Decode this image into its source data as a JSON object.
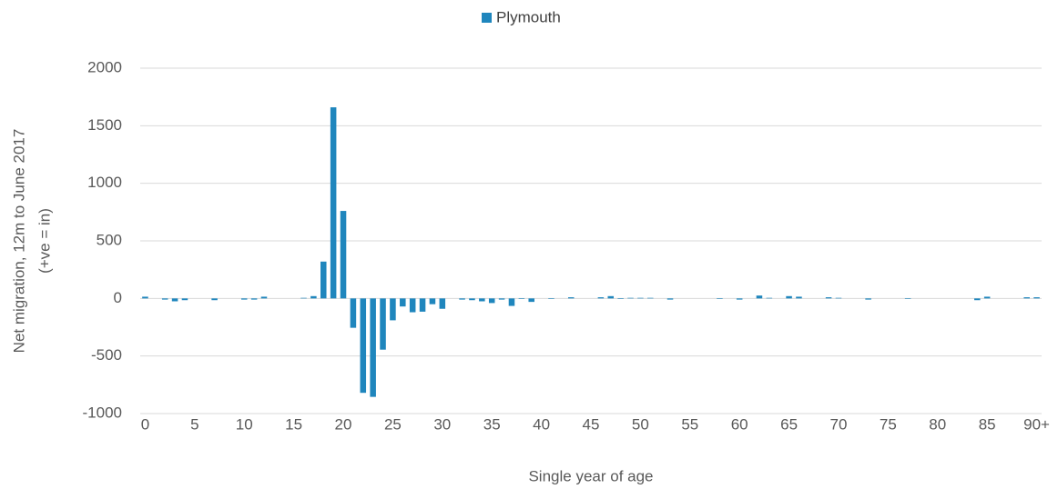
{
  "chart_data": {
    "type": "bar",
    "legend": "Plymouth",
    "xlabel": "Single year of age",
    "ylabel": [
      "Net migration, 12m to June 2017",
      "(+ve = in)"
    ],
    "color": "#1f86bd",
    "categories": [
      "0",
      null,
      null,
      null,
      null,
      "5",
      null,
      null,
      null,
      null,
      "10",
      null,
      null,
      null,
      null,
      "15",
      null,
      null,
      null,
      null,
      "20",
      null,
      null,
      null,
      null,
      "25",
      null,
      null,
      null,
      null,
      "30",
      null,
      null,
      null,
      null,
      "35",
      null,
      null,
      null,
      null,
      "40",
      null,
      null,
      null,
      null,
      "45",
      null,
      null,
      null,
      null,
      "50",
      null,
      null,
      null,
      null,
      "55",
      null,
      null,
      null,
      null,
      "60",
      null,
      null,
      null,
      null,
      "65",
      null,
      null,
      null,
      null,
      "70",
      null,
      null,
      null,
      null,
      "75",
      null,
      null,
      null,
      null,
      "80",
      null,
      null,
      null,
      null,
      "85",
      null,
      null,
      null,
      null,
      "90+"
    ],
    "values": [
      15,
      0,
      -10,
      -25,
      -15,
      0,
      0,
      -15,
      0,
      0,
      -10,
      -10,
      15,
      0,
      0,
      0,
      5,
      20,
      320,
      1660,
      760,
      -255,
      -820,
      -855,
      -445,
      -190,
      -70,
      -120,
      -115,
      -50,
      -90,
      0,
      -10,
      -15,
      -25,
      -40,
      -10,
      -65,
      -5,
      -30,
      0,
      -5,
      0,
      10,
      0,
      0,
      10,
      20,
      -5,
      5,
      5,
      5,
      0,
      -10,
      0,
      0,
      0,
      0,
      -5,
      0,
      -10,
      0,
      25,
      5,
      0,
      20,
      15,
      0,
      0,
      10,
      5,
      0,
      0,
      -10,
      0,
      0,
      0,
      -5,
      0,
      0,
      0,
      0,
      0,
      0,
      -15,
      15,
      0,
      0,
      0,
      10,
      10
    ],
    "ylim": [
      -1000,
      2000
    ],
    "yticks": [
      -1000,
      -500,
      0,
      500,
      1000,
      1500,
      2000
    ],
    "grid": true
  }
}
